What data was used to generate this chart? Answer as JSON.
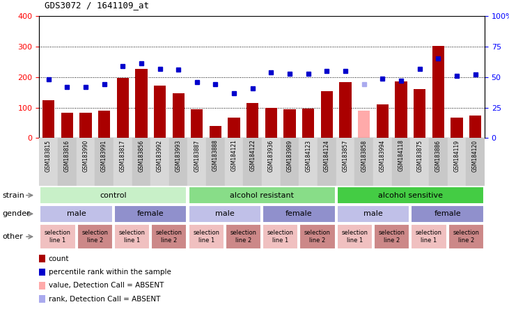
{
  "title": "GDS3072 / 1641109_at",
  "samples": [
    "GSM183815",
    "GSM183816",
    "GSM183990",
    "GSM183991",
    "GSM183817",
    "GSM183856",
    "GSM183992",
    "GSM183993",
    "GSM183887",
    "GSM183888",
    "GSM184121",
    "GSM184122",
    "GSM183936",
    "GSM183989",
    "GSM184123",
    "GSM184124",
    "GSM183857",
    "GSM183858",
    "GSM183994",
    "GSM184118",
    "GSM183875",
    "GSM183886",
    "GSM184119",
    "GSM184120"
  ],
  "bar_values": [
    125,
    83,
    83,
    90,
    198,
    228,
    172,
    148,
    95,
    40,
    68,
    115,
    98,
    95,
    97,
    155,
    183,
    90,
    110,
    185,
    160,
    303,
    68,
    75
  ],
  "bar_colors": [
    "#aa0000",
    "#aa0000",
    "#aa0000",
    "#aa0000",
    "#aa0000",
    "#aa0000",
    "#aa0000",
    "#aa0000",
    "#aa0000",
    "#aa0000",
    "#aa0000",
    "#aa0000",
    "#aa0000",
    "#aa0000",
    "#aa0000",
    "#aa0000",
    "#aa0000",
    "#ffaaaa",
    "#aa0000",
    "#aa0000",
    "#aa0000",
    "#aa0000",
    "#aa0000",
    "#aa0000"
  ],
  "dot_values": [
    48,
    42,
    42,
    44,
    59,
    61,
    57,
    56,
    46,
    44,
    37,
    41,
    54,
    53,
    53,
    55,
    55,
    44,
    49,
    47,
    57,
    65,
    51,
    52
  ],
  "dot_colors": [
    "#0000cc",
    "#0000cc",
    "#0000cc",
    "#0000cc",
    "#0000cc",
    "#0000cc",
    "#0000cc",
    "#0000cc",
    "#0000cc",
    "#0000cc",
    "#0000cc",
    "#0000cc",
    "#0000cc",
    "#0000cc",
    "#0000cc",
    "#0000cc",
    "#0000cc",
    "#aaaaee",
    "#0000cc",
    "#0000cc",
    "#0000cc",
    "#0000cc",
    "#0000cc",
    "#0000cc"
  ],
  "ylim_left": [
    0,
    400
  ],
  "ylim_right": [
    0,
    100
  ],
  "yticks_left": [
    0,
    100,
    200,
    300,
    400
  ],
  "yticks_right": [
    0,
    25,
    50,
    75,
    100
  ],
  "ytick_labels_right": [
    "0",
    "25",
    "50",
    "75",
    "100%"
  ],
  "grid_lines": [
    100,
    200,
    300
  ],
  "strain_groups": [
    {
      "label": "control",
      "start": 0,
      "end": 8,
      "color": "#c8f0c8"
    },
    {
      "label": "alcohol resistant",
      "start": 8,
      "end": 16,
      "color": "#88dd88"
    },
    {
      "label": "alcohol sensitive",
      "start": 16,
      "end": 24,
      "color": "#44cc44"
    }
  ],
  "gender_groups": [
    {
      "label": "male",
      "start": 0,
      "end": 4,
      "color": "#c0c0e8"
    },
    {
      "label": "female",
      "start": 4,
      "end": 8,
      "color": "#9090cc"
    },
    {
      "label": "male",
      "start": 8,
      "end": 12,
      "color": "#c0c0e8"
    },
    {
      "label": "female",
      "start": 12,
      "end": 16,
      "color": "#9090cc"
    },
    {
      "label": "male",
      "start": 16,
      "end": 20,
      "color": "#c0c0e8"
    },
    {
      "label": "female",
      "start": 20,
      "end": 24,
      "color": "#9090cc"
    }
  ],
  "other_groups": [
    {
      "label": "selection\nline 1",
      "start": 0,
      "end": 2,
      "color": "#f0c0c0"
    },
    {
      "label": "selection\nline 2",
      "start": 2,
      "end": 4,
      "color": "#cc8888"
    },
    {
      "label": "selection\nline 1",
      "start": 4,
      "end": 6,
      "color": "#f0c0c0"
    },
    {
      "label": "selection\nline 2",
      "start": 6,
      "end": 8,
      "color": "#cc8888"
    },
    {
      "label": "selection\nline 1",
      "start": 8,
      "end": 10,
      "color": "#f0c0c0"
    },
    {
      "label": "selection\nline 2",
      "start": 10,
      "end": 12,
      "color": "#cc8888"
    },
    {
      "label": "selection\nline 1",
      "start": 12,
      "end": 14,
      "color": "#f0c0c0"
    },
    {
      "label": "selection\nline 2",
      "start": 14,
      "end": 16,
      "color": "#cc8888"
    },
    {
      "label": "selection\nline 1",
      "start": 16,
      "end": 18,
      "color": "#f0c0c0"
    },
    {
      "label": "selection\nline 2",
      "start": 18,
      "end": 20,
      "color": "#cc8888"
    },
    {
      "label": "selection\nline 1",
      "start": 20,
      "end": 22,
      "color": "#f0c0c0"
    },
    {
      "label": "selection\nline 2",
      "start": 22,
      "end": 24,
      "color": "#cc8888"
    }
  ],
  "legend_items": [
    {
      "label": "count",
      "color": "#aa0000"
    },
    {
      "label": "percentile rank within the sample",
      "color": "#0000cc"
    },
    {
      "label": "value, Detection Call = ABSENT",
      "color": "#ffaaaa"
    },
    {
      "label": "rank, Detection Call = ABSENT",
      "color": "#aaaaee"
    }
  ],
  "sample_bg_colors": [
    "#d8d8d8",
    "#c8c8c8"
  ]
}
